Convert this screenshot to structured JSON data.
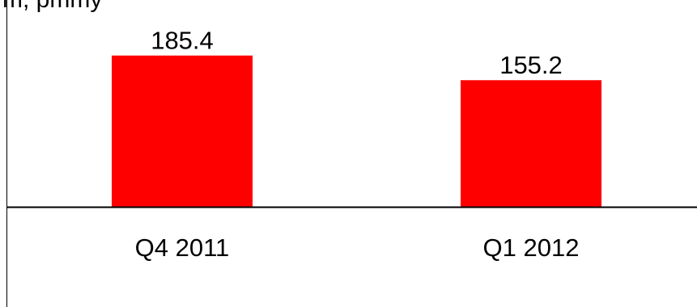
{
  "chart_data": {
    "type": "bar",
    "header_text": "m, pmmy",
    "categories": [
      "Q4 2011",
      "Q1 2012"
    ],
    "values": [
      185.4,
      155.2
    ],
    "value_labels": [
      "185.4",
      "155.2"
    ],
    "ylim": [
      0,
      200
    ],
    "grid": false,
    "bar_color": "#ff0000",
    "axis_color": "#000000"
  }
}
